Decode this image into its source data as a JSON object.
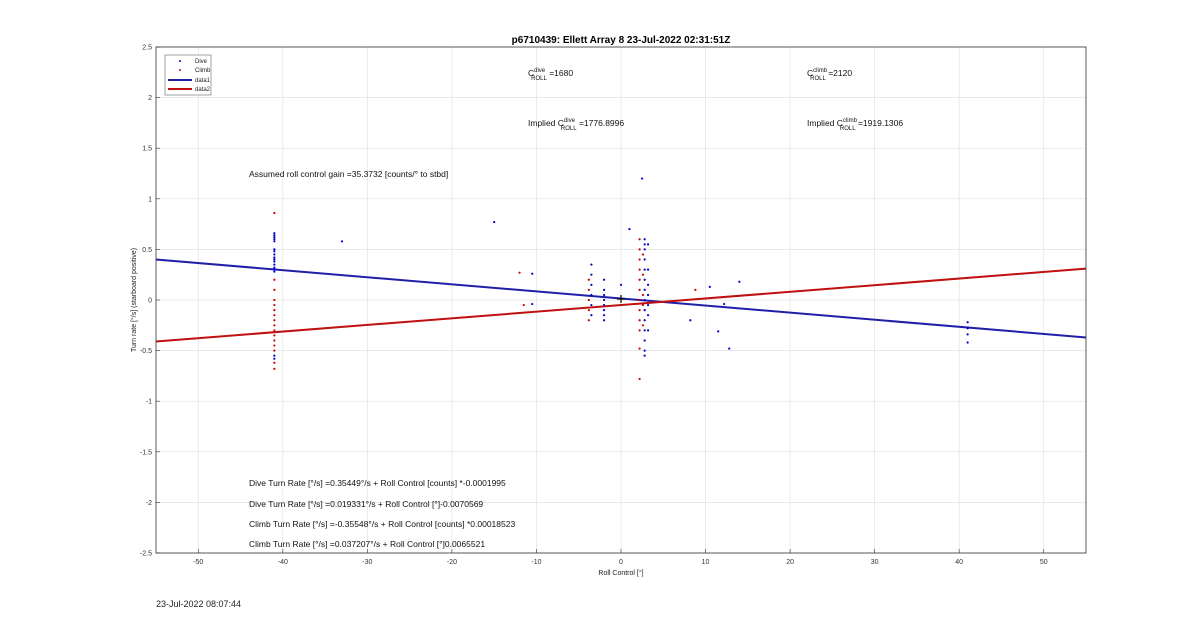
{
  "chart_data": {
    "type": "scatter",
    "title": "p6710439: Ellett Array 8 23-Jul-2022 02:31:51Z",
    "xlabel": "Roll Control [°]",
    "ylabel": "Turn rate [°/s] (starboard positive)",
    "xlim": [
      -55,
      55
    ],
    "ylim": [
      -2.5,
      2.5
    ],
    "xticks": [
      -50,
      -40,
      -30,
      -20,
      -10,
      0,
      10,
      20,
      30,
      40,
      50
    ],
    "yticks": [
      -2.5,
      -2,
      -1.5,
      -1,
      -0.5,
      0,
      0.5,
      1,
      1.5,
      2,
      2.5
    ],
    "grid": true,
    "legend_position": "top-left",
    "colors": {
      "dive": "#0000cc",
      "climb": "#cc0000",
      "data1": "#1f1fa8",
      "data2": "#c01010"
    },
    "series": [
      {
        "name": "Dive",
        "kind": "scatter",
        "points": [
          [
            -41,
            0.66
          ],
          [
            -41,
            0.64
          ],
          [
            -41,
            0.62
          ],
          [
            -41,
            0.6
          ],
          [
            -41,
            0.58
          ],
          [
            -41,
            0.5
          ],
          [
            -41,
            0.48
          ],
          [
            -41,
            0.45
          ],
          [
            -41,
            0.42
          ],
          [
            -41,
            0.4
          ],
          [
            -41,
            0.38
          ],
          [
            -41,
            0.35
          ],
          [
            -41,
            0.32
          ],
          [
            -41,
            0.3
          ],
          [
            -41,
            0.28
          ],
          [
            -41,
            -0.55
          ],
          [
            -41,
            -0.58
          ],
          [
            -33,
            0.58
          ],
          [
            -15,
            0.77
          ],
          [
            -10.5,
            0.26
          ],
          [
            -10.5,
            -0.04
          ],
          [
            -3.5,
            0.35
          ],
          [
            -3.5,
            0.25
          ],
          [
            -3.5,
            0.15
          ],
          [
            -3.5,
            0.05
          ],
          [
            -3.5,
            -0.05
          ],
          [
            -3.5,
            -0.15
          ],
          [
            -2,
            0.2
          ],
          [
            -2,
            0.1
          ],
          [
            -2,
            0.05
          ],
          [
            -2,
            0
          ],
          [
            -2,
            -0.05
          ],
          [
            -2,
            -0.1
          ],
          [
            -2,
            -0.15
          ],
          [
            -2,
            -0.2
          ],
          [
            0,
            0.15
          ],
          [
            1,
            0.7
          ],
          [
            2.5,
            1.2
          ],
          [
            2.8,
            0.6
          ],
          [
            2.8,
            0.55
          ],
          [
            2.8,
            0.5
          ],
          [
            2.8,
            0.4
          ],
          [
            2.8,
            0.3
          ],
          [
            2.8,
            0.2
          ],
          [
            2.8,
            0.1
          ],
          [
            2.8,
            0
          ],
          [
            2.8,
            -0.1
          ],
          [
            2.8,
            -0.2
          ],
          [
            2.8,
            -0.3
          ],
          [
            2.8,
            -0.4
          ],
          [
            2.8,
            -0.5
          ],
          [
            2.8,
            -0.55
          ],
          [
            3.2,
            0.55
          ],
          [
            3.2,
            0.3
          ],
          [
            3.2,
            0.15
          ],
          [
            3.2,
            0.05
          ],
          [
            3.2,
            -0.05
          ],
          [
            3.2,
            -0.15
          ],
          [
            3.2,
            -0.3
          ],
          [
            8.2,
            -0.2
          ],
          [
            10.5,
            0.13
          ],
          [
            11.5,
            -0.31
          ],
          [
            12.2,
            -0.04
          ],
          [
            12.8,
            -0.48
          ],
          [
            14,
            0.18
          ],
          [
            41,
            -0.22
          ],
          [
            41,
            -0.28
          ],
          [
            41,
            -0.34
          ],
          [
            41,
            -0.42
          ]
        ]
      },
      {
        "name": "Climb",
        "kind": "scatter",
        "points": [
          [
            -41,
            0.86
          ],
          [
            -41,
            0.2
          ],
          [
            -41,
            0.1
          ],
          [
            -41,
            0
          ],
          [
            -41,
            -0.05
          ],
          [
            -41,
            -0.1
          ],
          [
            -41,
            -0.15
          ],
          [
            -41,
            -0.2
          ],
          [
            -41,
            -0.25
          ],
          [
            -41,
            -0.3
          ],
          [
            -41,
            -0.35
          ],
          [
            -41,
            -0.4
          ],
          [
            -41,
            -0.45
          ],
          [
            -41,
            -0.5
          ],
          [
            -41,
            -0.62
          ],
          [
            -41,
            -0.68
          ],
          [
            -12,
            0.27
          ],
          [
            -11.5,
            -0.05
          ],
          [
            -3.8,
            0.2
          ],
          [
            -3.8,
            0.1
          ],
          [
            -3.8,
            0
          ],
          [
            -3.8,
            -0.1
          ],
          [
            -3.8,
            -0.2
          ],
          [
            2.2,
            0.6
          ],
          [
            2.2,
            0.5
          ],
          [
            2.2,
            0.4
          ],
          [
            2.2,
            0.3
          ],
          [
            2.2,
            0.2
          ],
          [
            2.2,
            0.1
          ],
          [
            2.2,
            0
          ],
          [
            2.2,
            -0.1
          ],
          [
            2.2,
            -0.2
          ],
          [
            2.2,
            -0.3
          ],
          [
            2.2,
            -0.48
          ],
          [
            2.2,
            -0.78
          ],
          [
            2.6,
            0.45
          ],
          [
            2.6,
            0.25
          ],
          [
            2.6,
            0.05
          ],
          [
            2.6,
            -0.05
          ],
          [
            2.6,
            -0.25
          ],
          [
            8.8,
            0.1
          ]
        ]
      },
      {
        "name": "data1",
        "kind": "line",
        "points": [
          [
            -55,
            0.4
          ],
          [
            55,
            -0.37
          ]
        ]
      },
      {
        "name": "data2",
        "kind": "line",
        "points": [
          [
            -55,
            -0.41
          ],
          [
            55,
            0.31
          ]
        ]
      }
    ]
  },
  "annotations": {
    "cdive_label": "C",
    "cdive_sup": "dive",
    "cdive_sub": "ROLL",
    "cdive_value": " =1680",
    "cclimb_label": "C",
    "cclimb_sup": "climb",
    "cclimb_sub": "ROLL",
    "cclimb_value": " =2120",
    "implied_dive_prefix": "Implied C",
    "implied_dive_sup": "dive",
    "implied_dive_sub": "ROLL",
    "implied_dive_value": " =1776.8996",
    "implied_climb_prefix": "Implied C",
    "implied_climb_sup": "climb",
    "implied_climb_sub": "ROLL",
    "implied_climb_value": " =1919.1306",
    "gain": "Assumed roll control gain =35.3732 [counts/° to stbd]",
    "eq1": "Dive Turn Rate [°/s] =0.35449°/s + Roll Control [counts] *-0.0001995",
    "eq2": "Dive Turn Rate [°/s] =0.019331°/s + Roll Control [°]-0.0070569",
    "eq3": "Climb Turn Rate [°/s] =-0.35548°/s + Roll Control [counts] *0.00018523",
    "eq4": "Climb Turn Rate [°/s] =0.037207°/s + Roll Control [°]0.0065521"
  },
  "timestamp": "23-Jul-2022 08:07:44"
}
